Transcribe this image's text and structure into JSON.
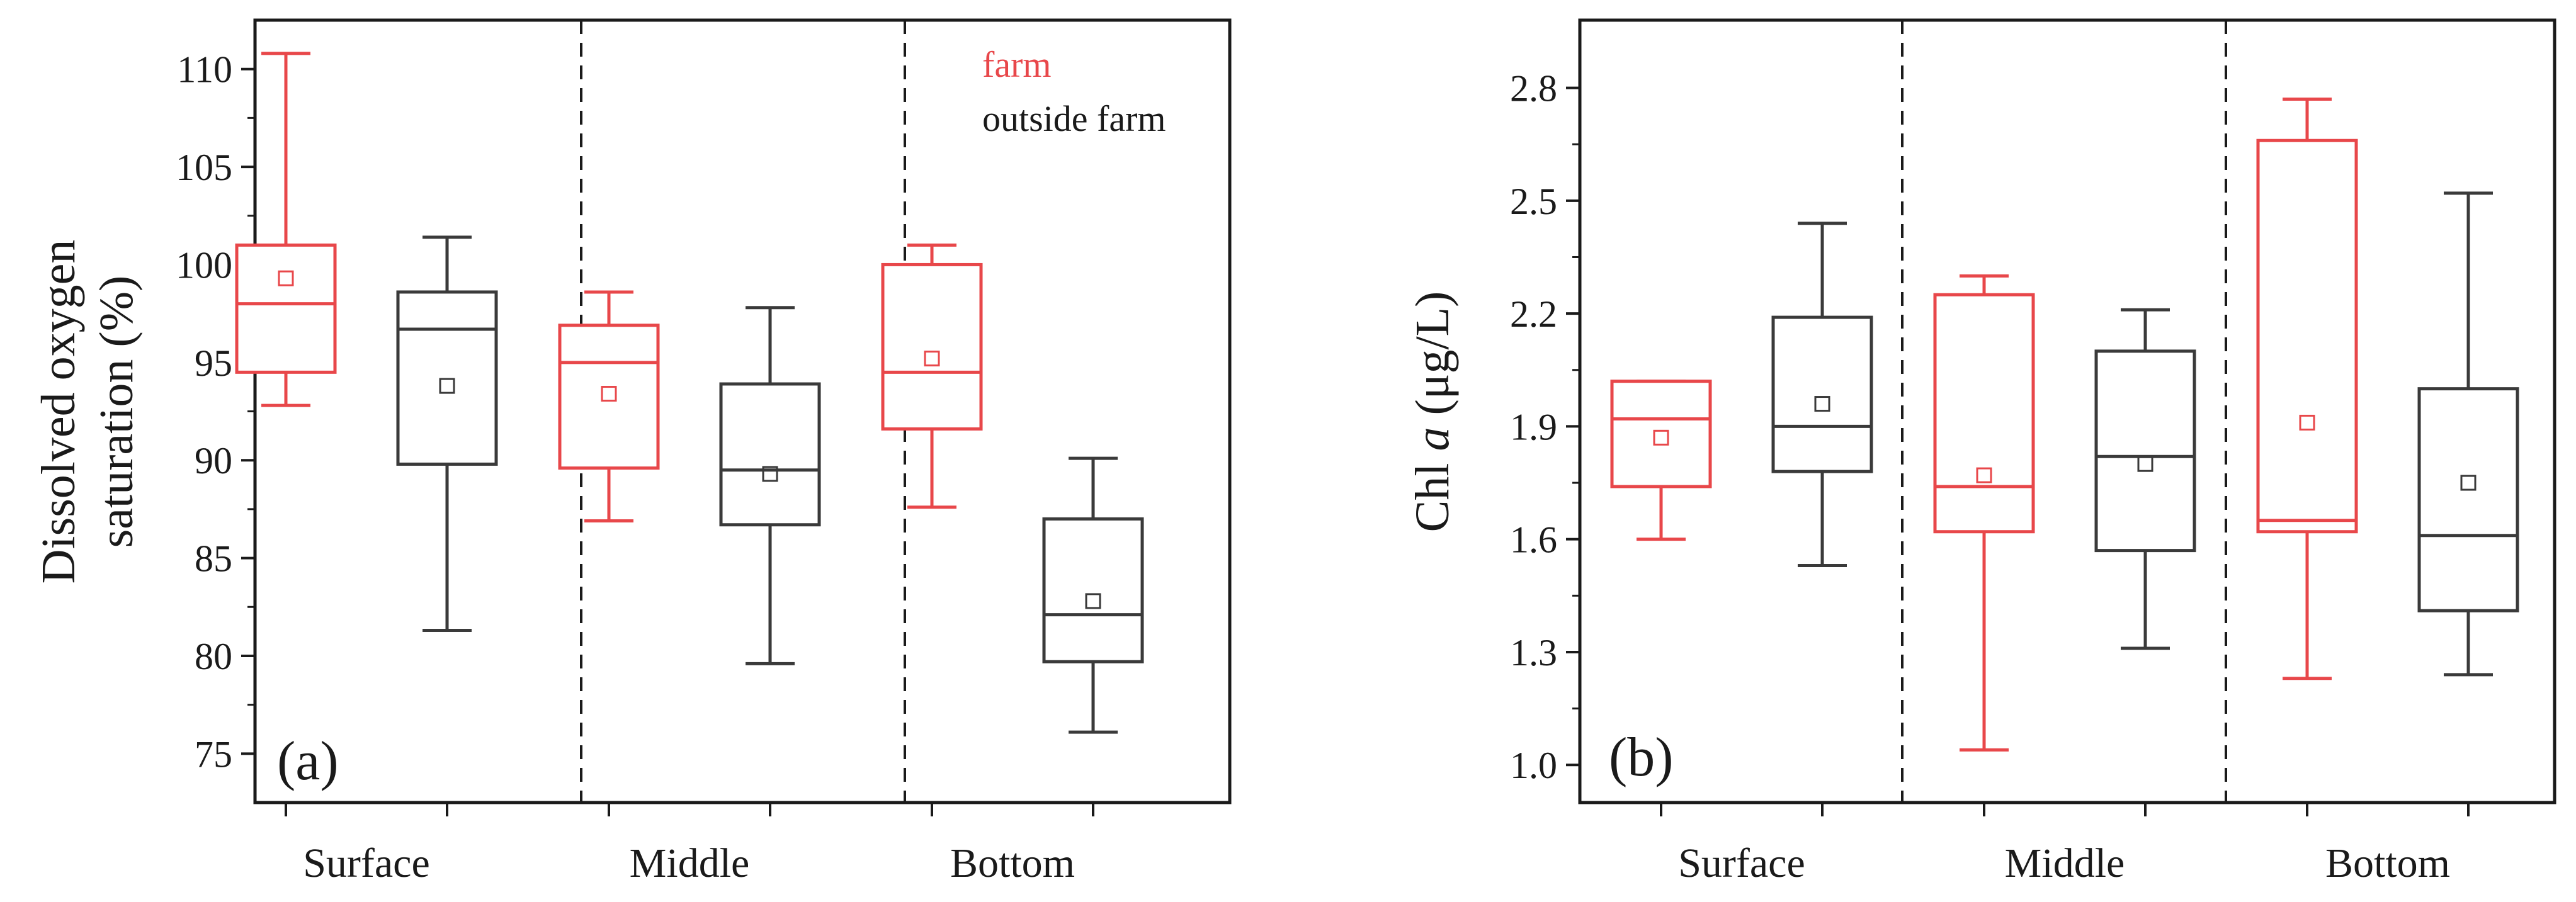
{
  "colors": {
    "farm": "#e8474a",
    "outside": "#3a3a3a",
    "axis": "#1a1a1a"
  },
  "legend": {
    "farm": "farm",
    "outside": "outside farm"
  },
  "chart_data": [
    {
      "type": "box",
      "panel_label": "(a)",
      "ylabel_line1": "Dissolved oxygen",
      "ylabel_line2": "saturation (%)",
      "ylim": [
        72.5,
        112.5
      ],
      "yticks": [
        "75",
        "80",
        "85",
        "90",
        "95",
        "100",
        "105",
        "110"
      ],
      "ytick_values": [
        75,
        80,
        85,
        90,
        95,
        100,
        105,
        110
      ],
      "categories": [
        "Surface",
        "Middle",
        "Bottom"
      ],
      "series": [
        {
          "name": "farm",
          "boxes": [
            {
              "min": 92.8,
              "q1": 94.5,
              "median": 98.0,
              "q3": 101.0,
              "max": 110.8,
              "mean": 99.3
            },
            {
              "min": 86.9,
              "q1": 89.6,
              "median": 95.0,
              "q3": 96.9,
              "max": 98.6,
              "mean": 93.4
            },
            {
              "min": 87.6,
              "q1": 91.6,
              "median": 94.5,
              "q3": 100.0,
              "max": 101.0,
              "mean": 95.2
            }
          ]
        },
        {
          "name": "outside farm",
          "boxes": [
            {
              "min": 81.3,
              "q1": 89.8,
              "median": 96.7,
              "q3": 98.6,
              "max": 101.4,
              "mean": 93.8
            },
            {
              "min": 79.6,
              "q1": 86.7,
              "median": 89.5,
              "q3": 93.9,
              "max": 97.8,
              "mean": 89.3
            },
            {
              "min": 76.1,
              "q1": 79.7,
              "median": 82.1,
              "q3": 87.0,
              "max": 90.1,
              "mean": 82.8
            }
          ]
        }
      ]
    },
    {
      "type": "box",
      "panel_label": "(b)",
      "ylabel_prefix": "Chl ",
      "ylabel_italic": "a",
      "ylabel_suffix": " (μg/L)",
      "ylim": [
        0.9,
        2.98
      ],
      "yticks": [
        "1.0",
        "1.3",
        "1.6",
        "1.9",
        "2.2",
        "2.5",
        "2.8"
      ],
      "ytick_values": [
        1.0,
        1.3,
        1.6,
        1.9,
        2.2,
        2.5,
        2.8
      ],
      "categories": [
        "Surface",
        "Middle",
        "Bottom"
      ],
      "series": [
        {
          "name": "farm",
          "boxes": [
            {
              "min": 1.6,
              "q1": 1.74,
              "median": 1.92,
              "q3": 2.02,
              "max": 2.02,
              "mean": 1.87
            },
            {
              "min": 1.04,
              "q1": 1.62,
              "median": 1.74,
              "q3": 2.25,
              "max": 2.3,
              "mean": 1.77
            },
            {
              "min": 1.23,
              "q1": 1.62,
              "median": 1.65,
              "q3": 2.66,
              "max": 2.77,
              "mean": 1.91
            }
          ]
        },
        {
          "name": "outside farm",
          "boxes": [
            {
              "min": 1.53,
              "q1": 1.78,
              "median": 1.9,
              "q3": 2.19,
              "max": 2.44,
              "mean": 1.96
            },
            {
              "min": 1.31,
              "q1": 1.57,
              "median": 1.82,
              "q3": 2.1,
              "max": 2.21,
              "mean": 1.8
            },
            {
              "min": 1.24,
              "q1": 1.41,
              "median": 1.61,
              "q3": 2.0,
              "max": 2.52,
              "mean": 1.75
            }
          ]
        }
      ]
    }
  ]
}
